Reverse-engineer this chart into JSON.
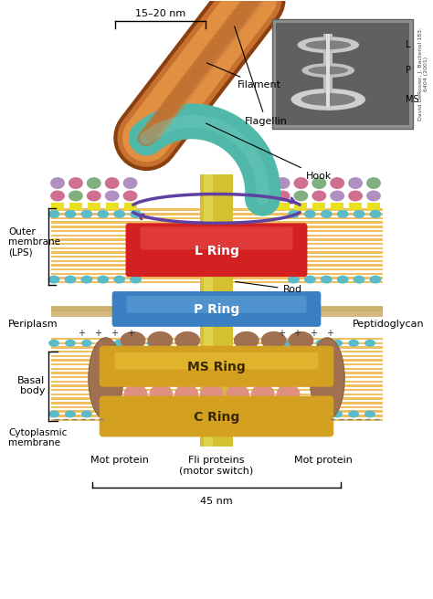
{
  "bg_color": "#ffffff",
  "ring_colors": {
    "L_ring": "#d42020",
    "P_ring": "#3a7fc1",
    "MS_ring": "#d4a020",
    "C_ring": "#d4a020",
    "rod": "#d4c030"
  },
  "filament_color": "#c87030",
  "hook_color": "#50b8a8",
  "mot_protein_color": "#a07050",
  "fli_protein_color": "#e09080",
  "purple_arrow": "#6040a0",
  "membrane_stripe": "#f0c060",
  "cyan_head": "#5abcc8",
  "pg_color": "#d4b880",
  "nm_label_15_20": "15–20 nm",
  "nm_label_45": "45 nm",
  "labels": {
    "filament": "Filament",
    "flagellin": "Flagellin",
    "hook": "Hook",
    "outer_membrane": "Outer\nmembrane\n(LPS)",
    "L_ring": "L Ring",
    "P_ring": "P Ring",
    "MS_ring": "MS Ring",
    "C_ring": "C Ring",
    "rod": "Rod",
    "periplasm": "Periplasm",
    "peptidoglycan": "Peptidoglycan",
    "basal_body": "Basal\nbody",
    "cytoplasmic_membrane": "Cytoplasmic\nmembrane",
    "mot_protein_left": "Mot protein",
    "fli_proteins": "Fli proteins\n(motor switch)",
    "mot_protein_right": "Mot protein"
  },
  "inset_labels": {
    "L": "L",
    "P": "P",
    "MS": "MS"
  }
}
